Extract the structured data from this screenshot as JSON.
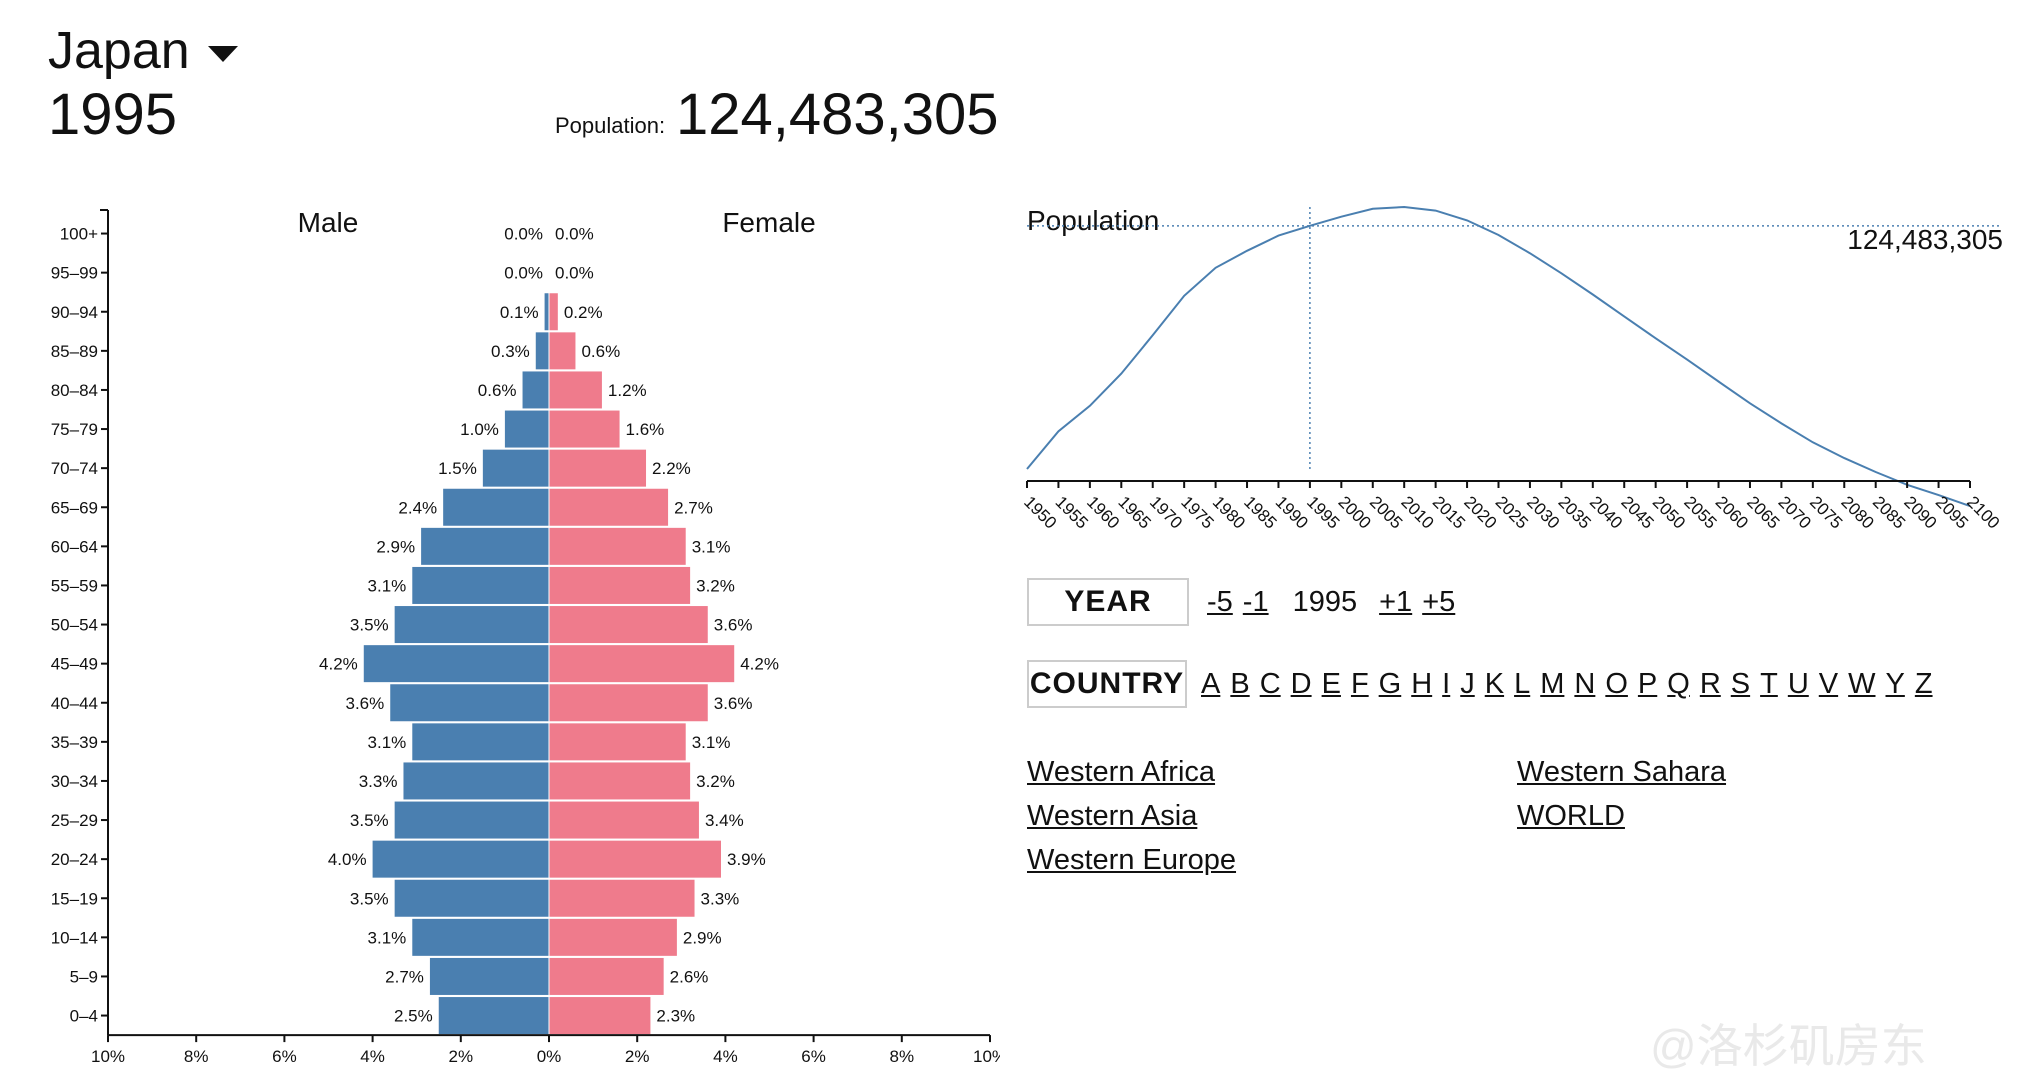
{
  "header": {
    "country": "Japan",
    "year": "1995",
    "population_label": "Population:",
    "population_value": "124,483,305"
  },
  "colors": {
    "male": "#4a7fb0",
    "female": "#ef7b8c",
    "line": "#4a7fb0",
    "text": "#111111"
  },
  "chart_data": [
    {
      "type": "bar",
      "subtype": "population-pyramid",
      "series_labels": {
        "left": "Male",
        "right": "Female"
      },
      "categories": [
        "100+",
        "95–99",
        "90–94",
        "85–89",
        "80–84",
        "75–79",
        "70–74",
        "65–69",
        "60–64",
        "55–59",
        "50–54",
        "45–49",
        "40–44",
        "35–39",
        "30–34",
        "25–29",
        "20–24",
        "15–19",
        "10–14",
        "5–9",
        "0–4"
      ],
      "male": [
        0.0,
        0.0,
        0.1,
        0.3,
        0.6,
        1.0,
        1.5,
        2.4,
        2.9,
        3.1,
        3.5,
        4.2,
        3.6,
        3.1,
        3.3,
        3.5,
        4.0,
        3.5,
        3.1,
        2.7,
        2.5
      ],
      "female": [
        0.0,
        0.0,
        0.2,
        0.6,
        1.2,
        1.6,
        2.2,
        2.7,
        3.1,
        3.2,
        3.6,
        4.2,
        3.6,
        3.1,
        3.2,
        3.4,
        3.9,
        3.3,
        2.9,
        2.6,
        2.3
      ],
      "male_labels": [
        "0.0%",
        "0.0%",
        "0.1%",
        "0.3%",
        "0.6%",
        "1.0%",
        "1.5%",
        "2.4%",
        "2.9%",
        "3.1%",
        "3.5%",
        "4.2%",
        "3.6%",
        "3.1%",
        "3.3%",
        "3.5%",
        "4.0%",
        "3.5%",
        "3.1%",
        "2.7%",
        "2.5%"
      ],
      "female_labels": [
        "0.0%",
        "0.0%",
        "0.2%",
        "0.6%",
        "1.2%",
        "1.6%",
        "2.2%",
        "2.7%",
        "3.1%",
        "3.2%",
        "3.6%",
        "4.2%",
        "3.6%",
        "3.1%",
        "3.2%",
        "3.4%",
        "3.9%",
        "3.3%",
        "2.9%",
        "2.6%",
        "2.3%"
      ],
      "x_ticks": [
        "10%",
        "8%",
        "6%",
        "4%",
        "2%",
        "0%",
        "2%",
        "4%",
        "6%",
        "8%",
        "10%"
      ],
      "xlim": [
        -10,
        10
      ]
    },
    {
      "type": "line",
      "title": "Population",
      "x": [
        1950,
        1955,
        1960,
        1965,
        1970,
        1975,
        1980,
        1985,
        1990,
        1995,
        2000,
        2005,
        2010,
        2015,
        2020,
        2025,
        2030,
        2035,
        2040,
        2045,
        2050,
        2055,
        2060,
        2065,
        2070,
        2075,
        2080,
        2085,
        2090,
        2095,
        2100
      ],
      "y": [
        84.5,
        90.7,
        94.9,
        100.2,
        106.5,
        113.0,
        117.6,
        120.4,
        122.9,
        124.5,
        126.0,
        127.3,
        127.6,
        127.0,
        125.4,
        123.0,
        120.0,
        116.7,
        113.2,
        109.6,
        106.0,
        102.5,
        98.9,
        95.3,
        92.0,
        88.9,
        86.3,
        84.0,
        81.9,
        80.2,
        78.4
      ],
      "x_ticks": [
        "1950",
        "1955",
        "1960",
        "1965",
        "1970",
        "1975",
        "1980",
        "1985",
        "1990",
        "1995",
        "2000",
        "2005",
        "2010",
        "2015",
        "2020",
        "2025",
        "2030",
        "2035",
        "2040",
        "2045",
        "2050",
        "2055",
        "2060",
        "2065",
        "2070",
        "2075",
        "2080",
        "2085",
        "2090",
        "2095",
        "2100"
      ],
      "highlight_year": 1995,
      "highlight_label": "124,483,305",
      "y_unit": "millions"
    }
  ],
  "controls": {
    "year_button": "YEAR",
    "year_steps": [
      "-5",
      "-1",
      "+1",
      "+5"
    ],
    "current_year": "1995",
    "country_button": "COUNTRY",
    "letters": [
      "A",
      "B",
      "C",
      "D",
      "E",
      "F",
      "G",
      "H",
      "I",
      "J",
      "K",
      "L",
      "M",
      "N",
      "O",
      "P",
      "Q",
      "R",
      "S",
      "T",
      "U",
      "V",
      "W",
      "Y",
      "Z"
    ]
  },
  "country_list": [
    "Western Africa",
    "Western Sahara",
    "Western Asia",
    "WORLD",
    "Western Europe"
  ],
  "watermark": "@洛杉矶房东"
}
